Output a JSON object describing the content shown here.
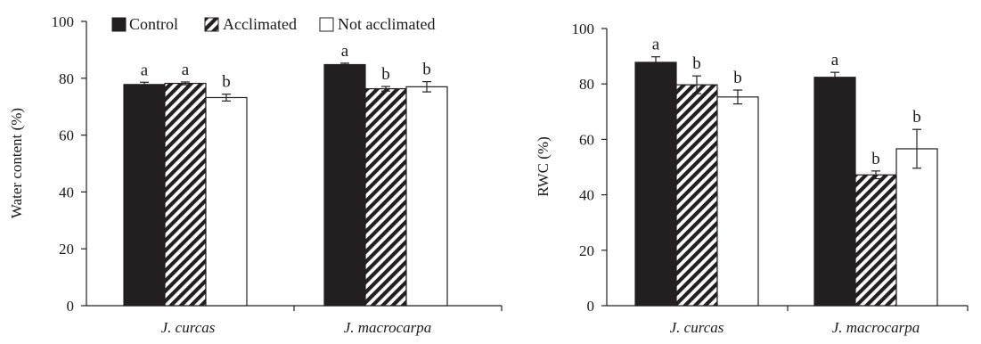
{
  "legend": {
    "items": [
      {
        "label": "Control",
        "pattern": "solid"
      },
      {
        "label": "Acclimated",
        "pattern": "hatch"
      },
      {
        "label": "Not acclimated",
        "pattern": "empty"
      }
    ]
  },
  "colors": {
    "solid": "#231f20",
    "outline": "#231f20",
    "background": "#ffffff"
  },
  "chart_data": [
    {
      "type": "bar",
      "title": "",
      "xlabel": "",
      "ylabel": "Water content (%)",
      "ylim": [
        0,
        100
      ],
      "yticks": [
        "0",
        "20",
        "40",
        "60",
        "80",
        "100"
      ],
      "categories": [
        "J. curcas",
        "J. macrocarpa"
      ],
      "series": [
        {
          "name": "Control",
          "values": [
            77.8,
            84.8
          ],
          "errors": [
            0.8,
            0.5
          ],
          "letters": [
            "a",
            "a"
          ]
        },
        {
          "name": "Acclimated",
          "values": [
            78.2,
            76.3
          ],
          "errors": [
            0.5,
            0.8
          ],
          "letters": [
            "a",
            "b"
          ]
        },
        {
          "name": "Not acclimated",
          "values": [
            73.2,
            77.0
          ],
          "errors": [
            1.2,
            1.8
          ],
          "letters": [
            "b",
            "b"
          ]
        }
      ],
      "grid": false,
      "legend_position": "top"
    },
    {
      "type": "bar",
      "title": "",
      "xlabel": "",
      "ylabel": "RWC (%)",
      "ylim": [
        0,
        100
      ],
      "yticks": [
        "0",
        "20",
        "40",
        "60",
        "80",
        "100"
      ],
      "categories": [
        "J. curcas",
        "J. macrocarpa"
      ],
      "series": [
        {
          "name": "Control",
          "values": [
            87.8,
            82.4
          ],
          "errors": [
            2.0,
            1.8
          ],
          "letters": [
            "a",
            "a"
          ]
        },
        {
          "name": "Acclimated",
          "values": [
            79.7,
            47.2
          ],
          "errors": [
            3.2,
            1.4
          ],
          "letters": [
            "b",
            "b"
          ]
        },
        {
          "name": "Not acclimated",
          "values": [
            75.3,
            56.6
          ],
          "errors": [
            2.5,
            7.0
          ],
          "letters": [
            "b",
            "b"
          ]
        }
      ],
      "grid": false,
      "legend_position": "none"
    }
  ]
}
